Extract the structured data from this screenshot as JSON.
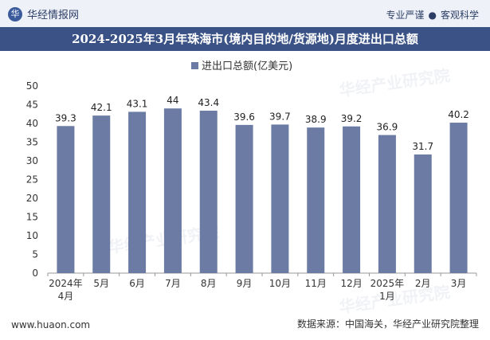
{
  "header": {
    "brand_name": "华经情报网",
    "tagline_left": "专业严谨",
    "tagline_right": "客观科学"
  },
  "footer": {
    "website": "www.huaon.com",
    "source": "数据来源：中国海关，华经产业研究院整理"
  },
  "watermark_text": "华经产业研究院",
  "colors": {
    "bar": "#6b7ba4",
    "title_bg": "#3b5287"
  },
  "chart_data": {
    "type": "bar",
    "title": "2024-2025年3月年珠海市(境内目的地/货源地)月度进出口总额",
    "legend": [
      "进出口总额(亿美元)"
    ],
    "legend_position": "top-center",
    "categories": [
      "2024年\n4月",
      "5月",
      "6月",
      "7月",
      "8月",
      "9月",
      "10月",
      "11月",
      "12月",
      "2025年\n1月",
      "2月",
      "3月"
    ],
    "series": [
      {
        "name": "进出口总额(亿美元)",
        "values": [
          39.3,
          42.1,
          43.1,
          44,
          43.4,
          39.6,
          39.7,
          38.9,
          39.2,
          36.9,
          31.7,
          40.2
        ]
      }
    ],
    "yticks": [
      0,
      5,
      10,
      15,
      20,
      25,
      30,
      35,
      40,
      45,
      50
    ],
    "ylim": [
      0,
      50
    ],
    "xlabel": "",
    "ylabel": "",
    "grid": false
  }
}
